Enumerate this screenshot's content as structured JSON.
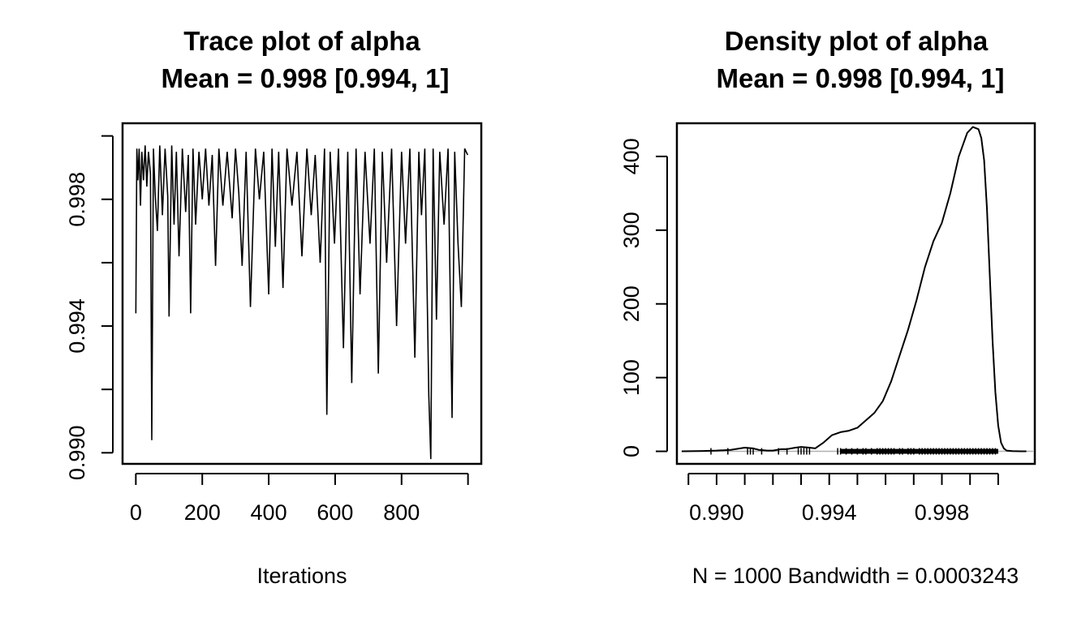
{
  "chart_data": [
    {
      "type": "line",
      "title": "Trace plot of alpha",
      "subtitle": "Mean = 0.998 [0.994, 1]",
      "xlabel": "Iterations",
      "ylabel": "",
      "xlim": [
        -40,
        1040
      ],
      "ylim": [
        0.98965,
        1.0004
      ],
      "xticks": [
        "0",
        "200",
        "400",
        "600",
        "800"
      ],
      "xtick_values": [
        0,
        200,
        400,
        600,
        800,
        1000
      ],
      "yticks": [
        "0.990",
        "0.994",
        "0.998"
      ],
      "ytick_values": [
        0.99,
        0.992,
        0.994,
        0.996,
        0.998,
        1.0
      ],
      "grid": false,
      "n_iterations": 1000,
      "series": [
        {
          "x": [
            0,
            3,
            6,
            10,
            14,
            18,
            23,
            28,
            33,
            38,
            44,
            48,
            53,
            58,
            65,
            72,
            80,
            88,
            96,
            100,
            108,
            115,
            122,
            130,
            140,
            150,
            158,
            165,
            172,
            180,
            190,
            200,
            210,
            220,
            230,
            240,
            250,
            262,
            275,
            290,
            300,
            310,
            320,
            332,
            345,
            360,
            372,
            385,
            400,
            410,
            420,
            430,
            443,
            455,
            470,
            485,
            500,
            515,
            528,
            540,
            555,
            568,
            575,
            585,
            598,
            610,
            625,
            638,
            650,
            663,
            675,
            690,
            705,
            718,
            730,
            742,
            755,
            770,
            785,
            800,
            812,
            825,
            840,
            852,
            860,
            870,
            882,
            888,
            895,
            905,
            915,
            928,
            940,
            952,
            960,
            970,
            980,
            990,
            999
          ],
          "values": [
            0.9944,
            0.9996,
            0.9986,
            0.9996,
            0.9978,
            0.9995,
            0.9986,
            0.9997,
            0.9984,
            0.9995,
            0.9988,
            0.9904,
            0.9996,
            0.9982,
            0.997,
            0.9997,
            0.9975,
            0.9996,
            0.9981,
            0.9943,
            0.9997,
            0.9972,
            0.9995,
            0.9962,
            0.9996,
            0.9976,
            0.9994,
            0.9944,
            0.9996,
            0.9972,
            0.9995,
            0.998,
            0.9996,
            0.9978,
            0.9994,
            0.9959,
            0.9996,
            0.9978,
            0.9995,
            0.9974,
            0.9996,
            0.9982,
            0.9959,
            0.9995,
            0.9946,
            0.9996,
            0.998,
            0.9995,
            0.995,
            0.9996,
            0.9965,
            0.9995,
            0.9952,
            0.9996,
            0.9978,
            0.9995,
            0.9962,
            0.9996,
            0.9975,
            0.9994,
            0.996,
            0.9996,
            0.9912,
            0.9995,
            0.9966,
            0.9996,
            0.9933,
            0.9995,
            0.9922,
            0.9996,
            0.995,
            0.9995,
            0.9966,
            0.9996,
            0.9925,
            0.9995,
            0.996,
            0.9996,
            0.994,
            0.9995,
            0.9966,
            0.9996,
            0.993,
            0.9995,
            0.9975,
            0.9996,
            0.9918,
            0.9898,
            0.9996,
            0.9942,
            0.9995,
            0.9972,
            0.9996,
            0.9911,
            0.9995,
            0.9966,
            0.9946,
            0.9996,
            0.9994
          ]
        }
      ]
    },
    {
      "type": "area",
      "title": "Density plot of alpha",
      "subtitle": "Mean = 0.998 [0.994, 1]",
      "xlabel": "N = 1000   Bandwidth = 0.0003243",
      "ylabel": "",
      "xlim": [
        0.98859,
        1.0013
      ],
      "ylim": [
        -17,
        445
      ],
      "xticks": [
        "0.990",
        "0.994",
        "0.998"
      ],
      "xtick_values": [
        0.989,
        0.99,
        0.991,
        0.992,
        0.993,
        0.994,
        0.995,
        0.996,
        0.997,
        0.998,
        0.999,
        1.0
      ],
      "xtick_label_values": [
        0.99,
        0.994,
        0.998
      ],
      "yticks": [
        "0",
        "100",
        "200",
        "300",
        "400"
      ],
      "ytick_values": [
        0,
        100,
        200,
        300,
        400
      ],
      "grid": false,
      "series": [
        {
          "x": [
            0.98876,
            0.989,
            0.9895,
            0.99,
            0.9905,
            0.991,
            0.9913,
            0.9915,
            0.9918,
            0.992,
            0.9923,
            0.9925,
            0.9928,
            0.993,
            0.9933,
            0.9935,
            0.9938,
            0.9941,
            0.9944,
            0.9947,
            0.995,
            0.9953,
            0.9956,
            0.9959,
            0.9962,
            0.9965,
            0.9968,
            0.9971,
            0.9974,
            0.9977,
            0.998,
            0.9983,
            0.9986,
            0.9989,
            0.9991,
            0.9993,
            0.9994,
            0.9995,
            0.9996,
            0.9997,
            0.9998,
            0.9999,
            1.0,
            1.0001,
            1.0002,
            1.0003,
            1.0005,
            1.0008,
            1.001
          ],
          "values": [
            0,
            0.2,
            0.5,
            1,
            2,
            5,
            4,
            2,
            1,
            1,
            3,
            3,
            5,
            6,
            5,
            4,
            12,
            22,
            26,
            28,
            32,
            42,
            52,
            68,
            95,
            130,
            165,
            205,
            250,
            285,
            310,
            350,
            400,
            432,
            440,
            437,
            425,
            395,
            330,
            240,
            150,
            80,
            35,
            12,
            4,
            1,
            0.3,
            0,
            0
          ]
        }
      ],
      "rug_x": [
        0.9898,
        0.9904,
        0.9911,
        0.9912,
        0.9913,
        0.9916,
        0.9922,
        0.9925,
        0.9929,
        0.993,
        0.9931,
        0.9932,
        0.9933,
        0.9943,
        0.9944,
        0.9946,
        0.9948,
        0.995,
        0.9952,
        0.9953,
        0.9955,
        0.9957,
        0.9958,
        0.9959,
        0.996,
        0.9961,
        0.9962,
        0.9963,
        0.9965,
        0.9966,
        0.9968,
        0.9969,
        0.997,
        0.9972,
        0.9973,
        0.9974,
        0.9975,
        0.9976,
        0.9977,
        0.9978,
        0.9979,
        0.998,
        0.9981,
        0.9982,
        0.9983,
        0.9984,
        0.9985,
        0.9986,
        0.9987,
        0.9988,
        0.9989,
        0.999,
        0.9991,
        0.9992,
        0.9993,
        0.9994,
        0.9995,
        0.9996,
        0.9997,
        0.9998,
        0.9999
      ]
    }
  ]
}
